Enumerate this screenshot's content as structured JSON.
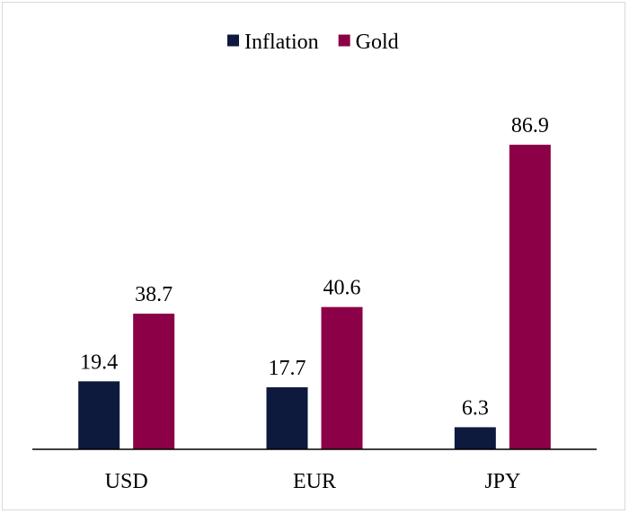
{
  "chart_data": {
    "type": "bar",
    "title": "",
    "xlabel": "",
    "ylabel": "",
    "categories": [
      "USD",
      "EUR",
      "JPY"
    ],
    "series": [
      {
        "name": "Inflation",
        "color": "#0d1a3d",
        "values": [
          19.4,
          17.7,
          6.3
        ]
      },
      {
        "name": "Gold",
        "color": "#8b0046",
        "values": [
          38.7,
          40.6,
          86.9
        ]
      }
    ],
    "data_labels": [
      [
        "19.4",
        "17.7",
        "6.3"
      ],
      [
        "38.7",
        "40.6",
        "86.9"
      ]
    ],
    "ylim": [
      0,
      100
    ],
    "grid": false,
    "legend": "top"
  }
}
